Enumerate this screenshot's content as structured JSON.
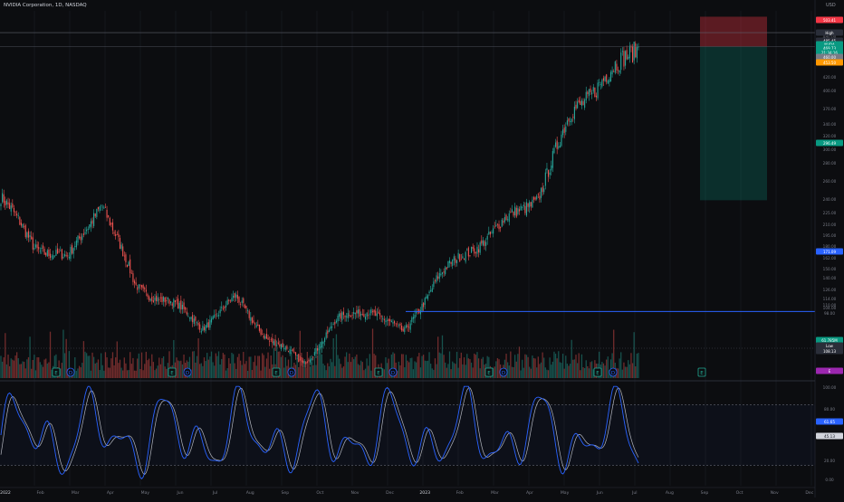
{
  "header": {
    "title": "NVIDIA Corporation, 1D, NASDAQ",
    "currency": "USD"
  },
  "colors": {
    "background": "#0c0d10",
    "up": "#26a69a",
    "down": "#ef5350",
    "stoch_k": "#2962ff",
    "stoch_d": "#b2b5be",
    "level_line": "#2962ff",
    "stop_zone": "#f23645",
    "target_zone": "#089981",
    "pattern_marker": "#22ab94",
    "pattern_marker_alt": "#2962ff",
    "pattern_marker_bear": "#f23645"
  },
  "price_axis": {
    "ticks": [
      "480.00",
      "460.00",
      "440.00",
      "420.00",
      "400.00",
      "370.00",
      "340.00",
      "320.00",
      "300.00",
      "280.00",
      "260.00",
      "240.00",
      "225.00",
      "210.00",
      "195.00",
      "180.00",
      "162.00",
      "150.00",
      "140.00",
      "126.00",
      "114.00",
      "110.00",
      "104.00",
      "98.00"
    ],
    "labels": [
      {
        "text": "503.41",
        "color": "#f23645"
      },
      {
        "text": "High",
        "color": "#2a2e39"
      },
      {
        "text": "485.45",
        "color": "#2a2e39"
      },
      {
        "text": "NVDA",
        "color": "#089981"
      },
      {
        "text": "469.73",
        "color": "#089981"
      },
      {
        "text": "21:34:16",
        "color": "#089981"
      },
      {
        "text": "460.00",
        "color": "#787b86"
      },
      {
        "text": "453.50",
        "color": "#ff9800"
      },
      {
        "text": "296.49",
        "color": "#089981"
      },
      {
        "text": "171.09",
        "color": "#2962ff"
      },
      {
        "text": "61.785M",
        "color": "#089981"
      },
      {
        "text": "Low",
        "color": "#2a2e39"
      },
      {
        "text": "108.13",
        "color": "#2a2e39"
      },
      {
        "text": "E",
        "color": "#9c27b0"
      }
    ]
  },
  "stoch_axis": {
    "ticks": [
      "100.00",
      "80.00",
      "61.65",
      "45.13",
      "20.00",
      "0.00"
    ]
  },
  "time_axis": {
    "labels": [
      "2022",
      "Feb",
      "Mar",
      "Apr",
      "May",
      "Jun",
      "Jul",
      "Aug",
      "Sep",
      "Oct",
      "Nov",
      "Dec",
      "2023",
      "Feb",
      "Mar",
      "Apr",
      "May",
      "Jun",
      "Jul",
      "Aug",
      "Sep",
      "Oct",
      "Nov",
      "Dec"
    ]
  },
  "chart_data": {
    "type": "candlestick",
    "symbol": "NVDA",
    "interval": "1D",
    "exchange": "NASDAQ",
    "ylim": [
      96,
      510
    ],
    "last_price": 469.73,
    "high_marker": 485.45,
    "low_marker": 108.13,
    "horizontal_level": 171.09,
    "position_tool": {
      "stop": 503.41,
      "entry": 469.73,
      "target": 296.49
    },
    "close_anchors": [
      {
        "date": "2022-01",
        "close": 300
      },
      {
        "date": "2022-02",
        "close": 245
      },
      {
        "date": "2022-03",
        "close": 230
      },
      {
        "date": "2022-04",
        "close": 295
      },
      {
        "date": "2022-05",
        "close": 200
      },
      {
        "date": "2022-06",
        "close": 182
      },
      {
        "date": "2022-07",
        "close": 155
      },
      {
        "date": "2022-08",
        "close": 185
      },
      {
        "date": "2022-09",
        "close": 140
      },
      {
        "date": "2022-10",
        "close": 112
      },
      {
        "date": "2022-11",
        "close": 160
      },
      {
        "date": "2022-12",
        "close": 175
      },
      {
        "date": "2023-01",
        "close": 145
      },
      {
        "date": "2023-02",
        "close": 210
      },
      {
        "date": "2023-03",
        "close": 240
      },
      {
        "date": "2023-04",
        "close": 272
      },
      {
        "date": "2023-05",
        "close": 300
      },
      {
        "date": "2023-06",
        "close": 395
      },
      {
        "date": "2023-07",
        "close": 435
      },
      {
        "date": "2023-08",
        "close": 470
      }
    ],
    "volume_note": "daily volume histogram",
    "stochastic": {
      "upper_band": 80,
      "lower_band": 20,
      "last_k": 61.65,
      "last_d": 45.13
    }
  },
  "markers": [
    {
      "label": "E",
      "kind": "earnings"
    },
    {
      "label": "D",
      "kind": "dividend"
    },
    {
      "label": "E",
      "kind": "earnings"
    },
    {
      "label": "D",
      "kind": "dividend"
    },
    {
      "label": "E",
      "kind": "earnings"
    },
    {
      "label": "D",
      "kind": "dividend"
    },
    {
      "label": "E",
      "kind": "earnings"
    },
    {
      "label": "D",
      "kind": "dividend"
    },
    {
      "label": "E",
      "kind": "earnings"
    },
    {
      "label": "D",
      "kind": "dividend"
    },
    {
      "label": "E",
      "kind": "earnings"
    },
    {
      "label": "D",
      "kind": "dividend"
    },
    {
      "label": "E",
      "kind": "earnings"
    }
  ]
}
